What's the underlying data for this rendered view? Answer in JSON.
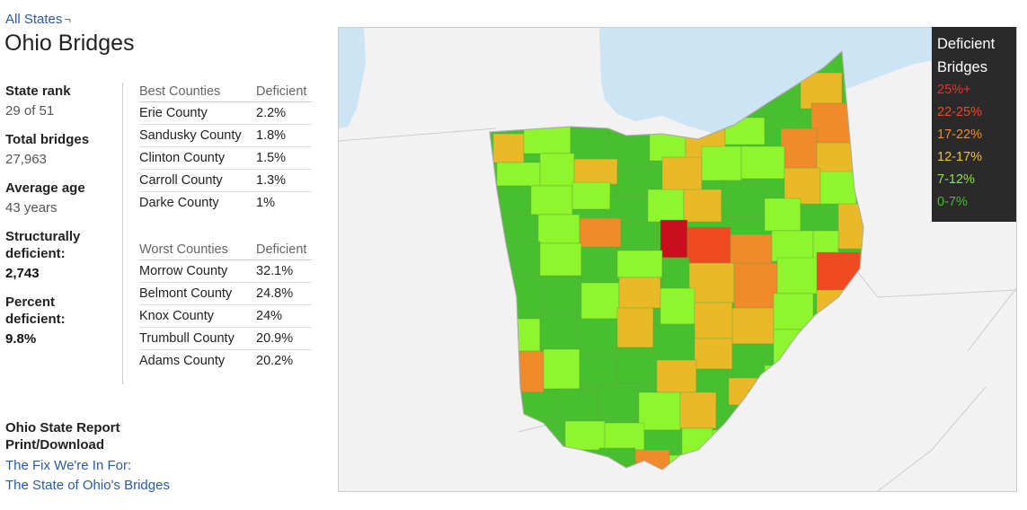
{
  "breadcrumb": {
    "label": "All States",
    "arrow": "¬"
  },
  "page_title": "Ohio Bridges",
  "stats": [
    {
      "label": "State rank",
      "value": "29 of 51",
      "strong": false
    },
    {
      "label": "Total bridges",
      "value": "27,963",
      "strong": false
    },
    {
      "label": "Average age",
      "value": "43 years",
      "strong": false
    },
    {
      "label": "Structurally deficient:",
      "value": "2,743",
      "strong": true
    },
    {
      "label": "Percent deficient:",
      "value": "9.8%",
      "strong": true
    }
  ],
  "best_counties": {
    "header_name": "Best Counties",
    "header_value": "Deficient",
    "rows": [
      {
        "name": "Erie County",
        "value": "2.2%"
      },
      {
        "name": "Sandusky County",
        "value": "1.8%"
      },
      {
        "name": "Clinton County",
        "value": "1.5%"
      },
      {
        "name": "Carroll County",
        "value": "1.3%"
      },
      {
        "name": "Darke County",
        "value": "1%"
      }
    ]
  },
  "worst_counties": {
    "header_name": "Worst Counties",
    "header_value": "Deficient",
    "rows": [
      {
        "name": "Morrow County",
        "value": "32.1%"
      },
      {
        "name": "Belmont County",
        "value": "24.8%"
      },
      {
        "name": "Knox County",
        "value": "24%"
      },
      {
        "name": "Trumbull County",
        "value": "20.9%"
      },
      {
        "name": "Adams County",
        "value": "20.2%"
      }
    ]
  },
  "report": {
    "title": "Ohio State Report Print/Download",
    "link1": "The Fix We're In For:",
    "link2": "The State of Ohio's Bridges"
  },
  "legend": {
    "title": "Deficient Bridges",
    "items": [
      {
        "label": "25%+",
        "color": "#e8322b"
      },
      {
        "label": "22-25%",
        "color": "#ee4a22"
      },
      {
        "label": "17-22%",
        "color": "#f08a2a"
      },
      {
        "label": "12-17%",
        "color": "#efc03a"
      },
      {
        "label": "7-12%",
        "color": "#8ee642"
      },
      {
        "label": "0-7%",
        "color": "#48bf2e"
      }
    ]
  },
  "map_colors": {
    "c0": "#48bf2e",
    "c7": "#8ff52c",
    "c12": "#e9b928",
    "c17": "#f08a2a",
    "c22": "#f04a22",
    "c25": "#c8101c",
    "lake": "#cde4f5",
    "land": "#f2f2f2"
  }
}
